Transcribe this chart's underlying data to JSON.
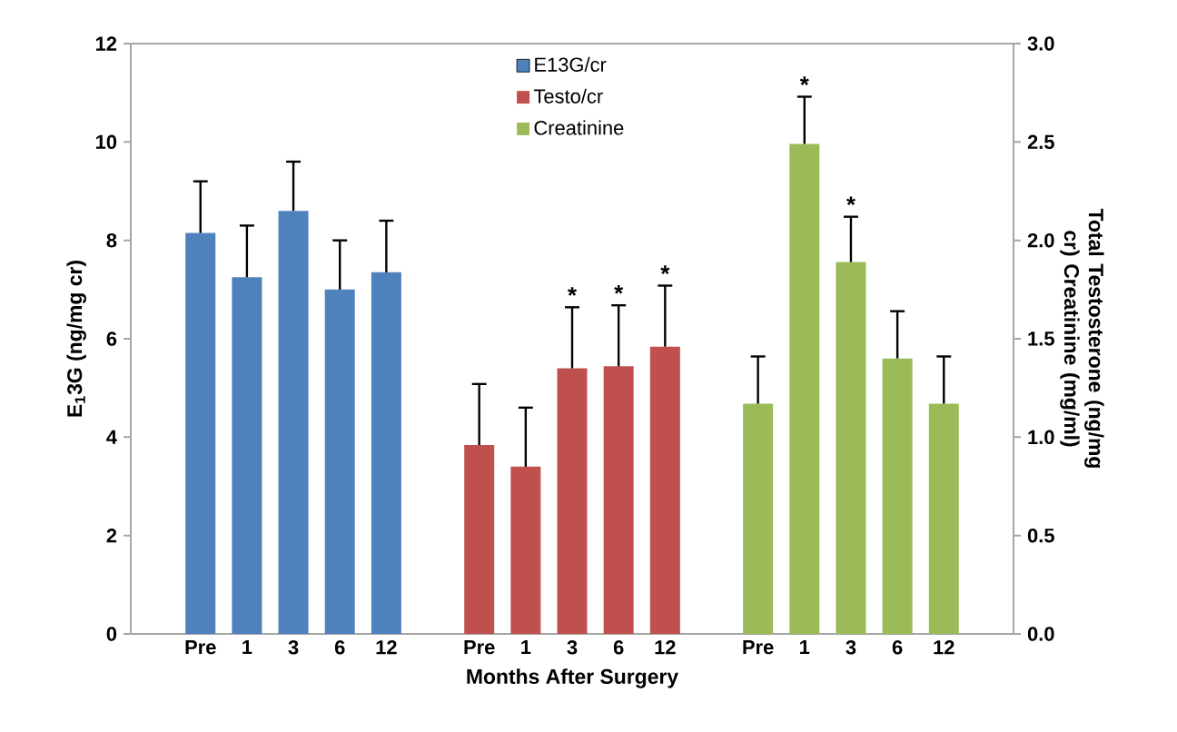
{
  "chart_data": {
    "type": "bar",
    "xlabel": "Months After Surgery",
    "ylabel": "E$_{1}$3G (ng/mg cr)",
    "y2label": "Total Testosterone (ng/mg cr) Creatinine (mg/ml)",
    "categories": [
      null,
      "Pre",
      "1",
      "3",
      "6",
      "12",
      null,
      "Pre",
      "1",
      "3",
      "6",
      "12",
      null,
      "Pre",
      "1",
      "3",
      "6",
      "12",
      null
    ],
    "series": [
      {
        "name": "E13G/cr",
        "color": "#4f81bd",
        "values": [
          null,
          8.15,
          7.25,
          8.6,
          7.0,
          7.35,
          null,
          null,
          null,
          null,
          null,
          null,
          null,
          null,
          null,
          null,
          null,
          null,
          null
        ],
        "errors": [
          null,
          [
            8.15,
            9.2
          ],
          [
            7.25,
            8.3
          ],
          [
            8.6,
            9.6
          ],
          [
            7.0,
            8.0
          ],
          [
            7.35,
            8.4
          ],
          null,
          null,
          null,
          null,
          null,
          null,
          null,
          null,
          null,
          null,
          null,
          null,
          null
        ]
      },
      {
        "name": "Testo/cr",
        "color": "#c0504d",
        "axis": "y2",
        "values": [
          null,
          null,
          null,
          null,
          null,
          null,
          null,
          0.96,
          0.85,
          1.35,
          1.36,
          1.46,
          null,
          null,
          null,
          null,
          null,
          null,
          null
        ],
        "errors": [
          null,
          null,
          null,
          null,
          null,
          null,
          null,
          [
            0.96,
            1.27
          ],
          [
            0.85,
            1.15
          ],
          [
            1.35,
            1.66
          ],
          [
            1.36,
            1.67
          ],
          [
            1.46,
            1.77
          ],
          null,
          null,
          null,
          null,
          null,
          null,
          null
        ],
        "value_labels": [
          null,
          null,
          null,
          null,
          null,
          null,
          null,
          null,
          null,
          "*",
          "*",
          "*",
          null,
          null,
          null,
          null,
          null,
          null,
          null
        ]
      },
      {
        "name": "Creatinine",
        "color": "#9bbb59",
        "axis": "y2",
        "values": [
          null,
          null,
          null,
          null,
          null,
          null,
          null,
          null,
          null,
          null,
          null,
          null,
          null,
          1.17,
          2.49,
          1.89,
          1.4,
          1.17,
          null
        ],
        "errors": [
          null,
          null,
          null,
          null,
          null,
          null,
          null,
          null,
          null,
          null,
          null,
          null,
          null,
          [
            1.17,
            1.41
          ],
          [
            2.49,
            2.73
          ],
          [
            1.89,
            2.12
          ],
          [
            1.4,
            1.64
          ],
          [
            1.17,
            1.41
          ],
          null
        ],
        "value_labels": [
          null,
          null,
          null,
          null,
          null,
          null,
          null,
          null,
          null,
          null,
          null,
          null,
          null,
          null,
          "*",
          "*",
          null,
          null,
          null
        ]
      }
    ],
    "ylim": [
      0,
      12
    ],
    "yticks": [
      0,
      2,
      4,
      6,
      8,
      10,
      12
    ],
    "y2lim": [
      0,
      3.0
    ],
    "y2ticks": [
      {
        "value": 0,
        "label": "0.0"
      },
      {
        "value": 0.5,
        "label": "0.5"
      },
      {
        "value": 1.0,
        "label": "1.0"
      },
      {
        "value": 1.5,
        "label": "1.5"
      },
      {
        "value": 2.0,
        "label": "2.0"
      },
      {
        "value": 2.5,
        "label": "2.5"
      },
      {
        "value": 3.0,
        "label": "3.0"
      }
    ],
    "legend": "top"
  }
}
